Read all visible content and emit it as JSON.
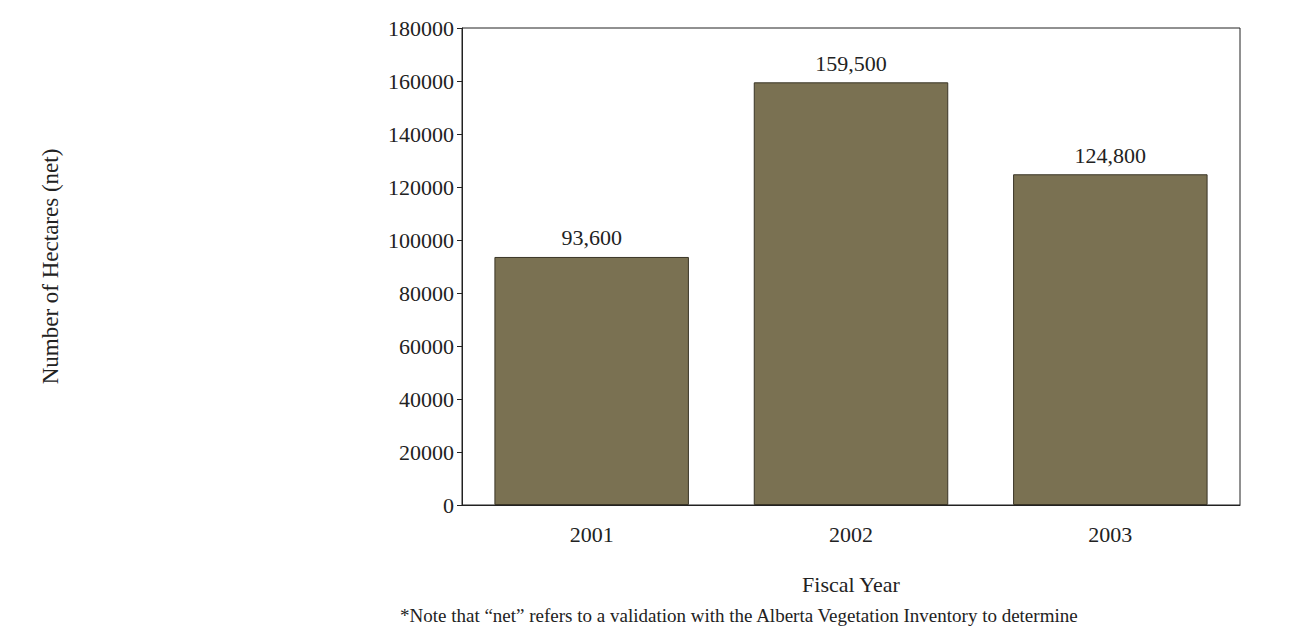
{
  "chart_data": {
    "type": "bar",
    "categories": [
      "2001",
      "2002",
      "2003"
    ],
    "values": [
      93600,
      159500,
      124800
    ],
    "value_labels": [
      "93,600",
      "159,500",
      "124,800"
    ],
    "color": "#7a7152",
    "x_label": "Fiscal Year",
    "y_label": "Number of Hectares (net)",
    "note": "*Note that “net” refers to a validation with the Alberta Vegetation Inventory to determine",
    "ylim": [
      0,
      180000
    ],
    "yticks": [
      0,
      20000,
      40000,
      60000,
      80000,
      100000,
      120000,
      140000,
      160000,
      180000
    ],
    "grid": false,
    "data_labels": true
  }
}
